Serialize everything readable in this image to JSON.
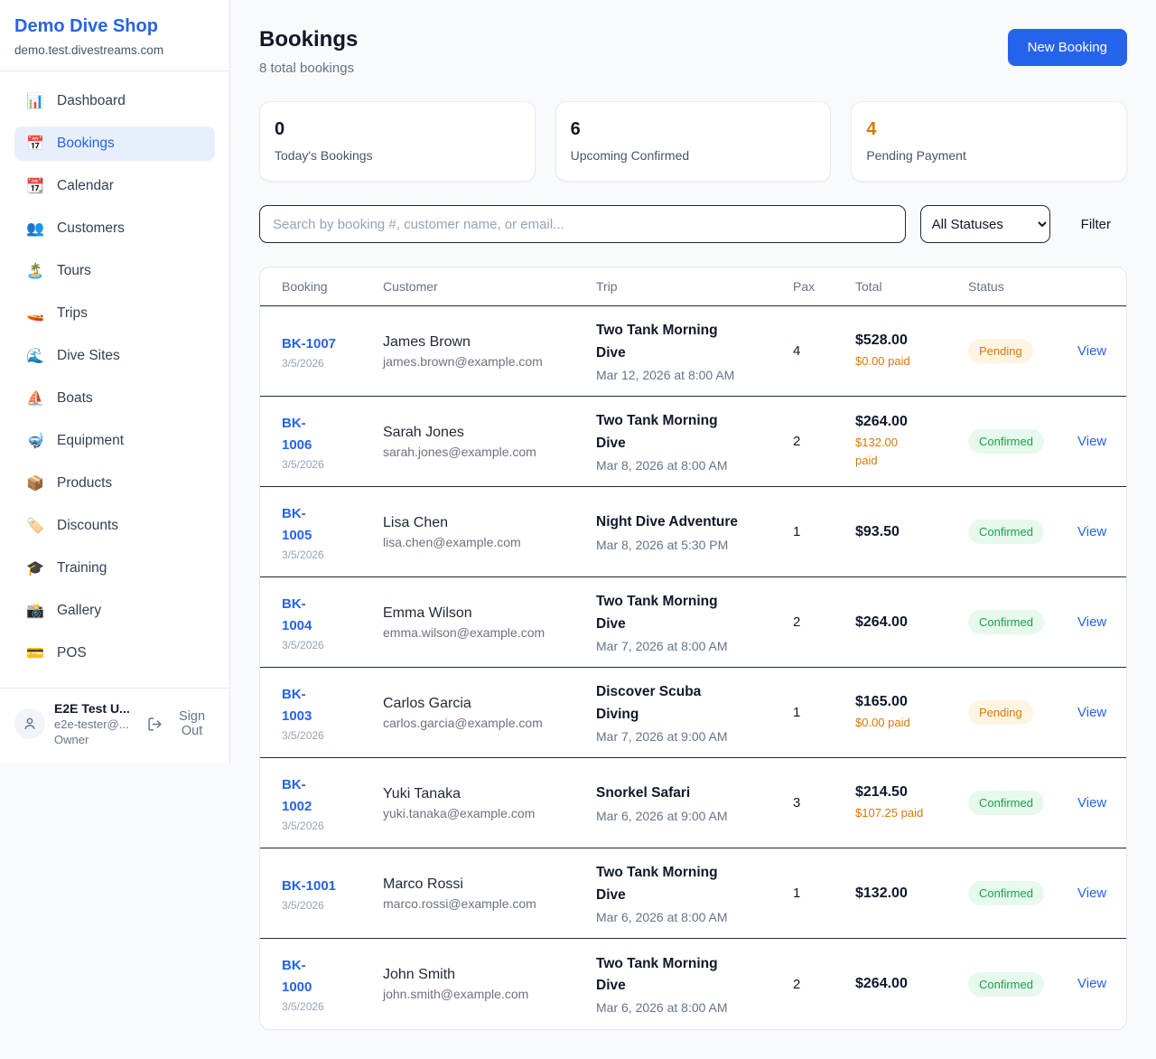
{
  "sidebar": {
    "brand": "Demo Dive Shop",
    "domain": "demo.test.divestreams.com",
    "items": [
      {
        "icon_name": "dashboard-chart-icon",
        "icon": "📊",
        "label": "Dashboard",
        "active": false
      },
      {
        "icon_name": "bookings-calendar-icon",
        "icon": "📅",
        "label": "Bookings",
        "active": true
      },
      {
        "icon_name": "calendar-icon",
        "icon": "📆",
        "label": "Calendar",
        "active": false
      },
      {
        "icon_name": "customers-people-icon",
        "icon": "👥",
        "label": "Customers",
        "active": false
      },
      {
        "icon_name": "tours-island-icon",
        "icon": "🏝️",
        "label": "Tours",
        "active": false
      },
      {
        "icon_name": "trips-speedboat-icon",
        "icon": "🚤",
        "label": "Trips",
        "active": false
      },
      {
        "icon_name": "dive-sites-wave-icon",
        "icon": "🌊",
        "label": "Dive Sites",
        "active": false
      },
      {
        "icon_name": "boats-sailboat-icon",
        "icon": "⛵",
        "label": "Boats",
        "active": false
      },
      {
        "icon_name": "equipment-mask-icon",
        "icon": "🤿",
        "label": "Equipment",
        "active": false
      },
      {
        "icon_name": "products-package-icon",
        "icon": "📦",
        "label": "Products",
        "active": false
      },
      {
        "icon_name": "discounts-tag-icon",
        "icon": "🏷️",
        "label": "Discounts",
        "active": false
      },
      {
        "icon_name": "training-gradcap-icon",
        "icon": "🎓",
        "label": "Training",
        "active": false
      },
      {
        "icon_name": "gallery-camera-icon",
        "icon": "📸",
        "label": "Gallery",
        "active": false
      },
      {
        "icon_name": "pos-creditcard-icon",
        "icon": "💳",
        "label": "POS",
        "active": false
      }
    ],
    "user": {
      "name": "E2E Test U...",
      "email": "e2e-tester@...",
      "role": "Owner",
      "signout_label": "Sign Out"
    }
  },
  "header": {
    "title": "Bookings",
    "subtitle": "8 total bookings",
    "new_booking_label": "New Booking"
  },
  "stats": [
    {
      "value": "0",
      "label": "Today's Bookings",
      "value_color": "#0f172a"
    },
    {
      "value": "6",
      "label": "Upcoming Confirmed",
      "value_color": "#0f172a"
    },
    {
      "value": "4",
      "label": "Pending Payment",
      "value_color": "#d97706"
    }
  ],
  "toolbar": {
    "search_placeholder": "Search by booking #, customer name, or email...",
    "status_filter_value": "All Statuses",
    "filter_label": "Filter"
  },
  "table": {
    "columns": [
      "Booking",
      "Customer",
      "Trip",
      "Pax",
      "Total",
      "Status"
    ],
    "view_label": "View",
    "rows": [
      {
        "id": "BK-1007",
        "id_display": "BK-1007",
        "date": "3/5/2026",
        "customer_name": "James Brown",
        "customer_email": "james.brown@example.com",
        "trip_name": "Two Tank Morning\nDive",
        "trip_datetime": "Mar 12, 2026 at 8:00 AM",
        "pax": "4",
        "total": "$528.00",
        "paid": "$0.00 paid",
        "status": "Pending",
        "status_type": "pending"
      },
      {
        "id": "BK-1006",
        "id_display": "BK-\n1006",
        "date": "3/5/2026",
        "customer_name": "Sarah Jones",
        "customer_email": "sarah.jones@example.com",
        "trip_name": "Two Tank Morning\nDive",
        "trip_datetime": "Mar 8, 2026 at 8:00 AM",
        "pax": "2",
        "total": "$264.00",
        "paid": "$132.00\npaid",
        "status": "Confirmed",
        "status_type": "confirmed"
      },
      {
        "id": "BK-1005",
        "id_display": "BK-\n1005",
        "date": "3/5/2026",
        "customer_name": "Lisa Chen",
        "customer_email": "lisa.chen@example.com",
        "trip_name": "Night Dive Adventure",
        "trip_datetime": "Mar 8, 2026 at 5:30 PM",
        "pax": "1",
        "total": "$93.50",
        "paid": "",
        "status": "Confirmed",
        "status_type": "confirmed"
      },
      {
        "id": "BK-1004",
        "id_display": "BK-\n1004",
        "date": "3/5/2026",
        "customer_name": "Emma Wilson",
        "customer_email": "emma.wilson@example.com",
        "trip_name": "Two Tank Morning\nDive",
        "trip_datetime": "Mar 7, 2026 at 8:00 AM",
        "pax": "2",
        "total": "$264.00",
        "paid": "",
        "status": "Confirmed",
        "status_type": "confirmed"
      },
      {
        "id": "BK-1003",
        "id_display": "BK-\n1003",
        "date": "3/5/2026",
        "customer_name": "Carlos Garcia",
        "customer_email": "carlos.garcia@example.com",
        "trip_name": "Discover Scuba\nDiving",
        "trip_datetime": "Mar 7, 2026 at 9:00 AM",
        "pax": "1",
        "total": "$165.00",
        "paid": "$0.00 paid",
        "status": "Pending",
        "status_type": "pending"
      },
      {
        "id": "BK-1002",
        "id_display": "BK-\n1002",
        "date": "3/5/2026",
        "customer_name": "Yuki Tanaka",
        "customer_email": "yuki.tanaka@example.com",
        "trip_name": "Snorkel Safari",
        "trip_datetime": "Mar 6, 2026 at 9:00 AM",
        "pax": "3",
        "total": "$214.50",
        "paid": "$107.25 paid",
        "status": "Confirmed",
        "status_type": "confirmed"
      },
      {
        "id": "BK-1001",
        "id_display": "BK-1001",
        "date": "3/5/2026",
        "customer_name": "Marco Rossi",
        "customer_email": "marco.rossi@example.com",
        "trip_name": "Two Tank Morning\nDive",
        "trip_datetime": "Mar 6, 2026 at 8:00 AM",
        "pax": "1",
        "total": "$132.00",
        "paid": "",
        "status": "Confirmed",
        "status_type": "confirmed"
      },
      {
        "id": "BK-1000",
        "id_display": "BK-\n1000",
        "date": "3/5/2026",
        "customer_name": "John Smith",
        "customer_email": "john.smith@example.com",
        "trip_name": "Two Tank Morning\nDive",
        "trip_datetime": "Mar 6, 2026 at 8:00 AM",
        "pax": "2",
        "total": "$264.00",
        "paid": "",
        "status": "Confirmed",
        "status_type": "confirmed"
      }
    ]
  },
  "colors": {
    "accent_blue": "#2563eb",
    "pending_text": "#d97706",
    "pending_bg": "#fdf5e1",
    "confirmed_text": "#16a34a",
    "confirmed_bg": "#e7f8ed"
  }
}
